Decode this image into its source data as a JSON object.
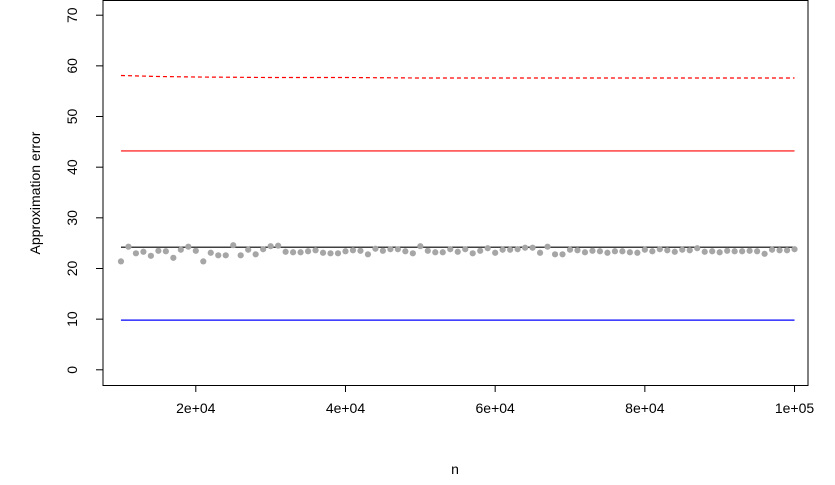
{
  "chart_data": {
    "type": "scatter",
    "title": "",
    "xlabel": "n",
    "ylabel": "Approximation error",
    "xlim": [
      7600,
      101800
    ],
    "ylim": [
      -3,
      73
    ],
    "x_ticks": [
      20000,
      40000,
      60000,
      80000,
      100000
    ],
    "x_tick_labels": [
      "2e+04",
      "4e+04",
      "6e+04",
      "8e+04",
      "1e+05"
    ],
    "y_ticks": [
      0,
      10,
      20,
      30,
      40,
      50,
      60,
      70
    ],
    "y_tick_labels": [
      "0",
      "10",
      "20",
      "30",
      "40",
      "50",
      "60",
      "70"
    ],
    "grid": false,
    "legend": "none",
    "points": {
      "color": "#a6a6a6",
      "x": [
        10000,
        11000,
        12000,
        13000,
        14000,
        15000,
        16000,
        17000,
        18000,
        19000,
        20000,
        21000,
        22000,
        23000,
        24000,
        25000,
        26000,
        27000,
        28000,
        29000,
        30000,
        31000,
        32000,
        33000,
        34000,
        35000,
        36000,
        37000,
        38000,
        39000,
        40000,
        41000,
        42000,
        43000,
        44000,
        45000,
        46000,
        47000,
        48000,
        49000,
        50000,
        51000,
        52000,
        53000,
        54000,
        55000,
        56000,
        57000,
        58000,
        59000,
        60000,
        61000,
        62000,
        63000,
        64000,
        65000,
        66000,
        67000,
        68000,
        69000,
        70000,
        71000,
        72000,
        73000,
        74000,
        75000,
        76000,
        77000,
        78000,
        79000,
        80000,
        81000,
        82000,
        83000,
        84000,
        85000,
        86000,
        87000,
        88000,
        89000,
        90000,
        91000,
        92000,
        93000,
        94000,
        95000,
        96000,
        97000,
        98000,
        99000,
        100000
      ],
      "y": [
        21.4,
        24.3,
        23.0,
        23.3,
        22.5,
        23.5,
        23.4,
        22.1,
        23.7,
        24.3,
        23.5,
        21.4,
        23.1,
        22.6,
        22.6,
        24.6,
        22.6,
        23.7,
        22.8,
        23.8,
        24.4,
        24.5,
        23.3,
        23.2,
        23.2,
        23.4,
        23.6,
        23.1,
        23.0,
        23.0,
        23.4,
        23.6,
        23.5,
        22.8,
        23.9,
        23.5,
        23.8,
        23.8,
        23.4,
        23.0,
        24.4,
        23.5,
        23.2,
        23.2,
        23.8,
        23.3,
        23.8,
        23.0,
        23.5,
        24.0,
        23.1,
        23.7,
        23.7,
        23.8,
        24.1,
        24.1,
        23.1,
        24.3,
        22.8,
        22.8,
        23.7,
        23.6,
        23.2,
        23.5,
        23.4,
        23.1,
        23.4,
        23.4,
        23.2,
        23.1,
        23.7,
        23.4,
        23.8,
        23.6,
        23.3,
        23.7,
        23.6,
        24.0,
        23.3,
        23.4,
        23.2,
        23.5,
        23.4,
        23.4,
        23.5,
        23.4,
        22.9,
        23.7,
        23.6,
        23.6,
        23.8
      ]
    },
    "lines": [
      {
        "color": "#ff0000",
        "style": "dashed",
        "x": [
          10000,
          15000,
          20000,
          30000,
          40000,
          50000,
          60000,
          70000,
          80000,
          90000,
          100000
        ],
        "y": [
          58.1,
          57.9,
          57.8,
          57.7,
          57.7,
          57.6,
          57.6,
          57.6,
          57.6,
          57.6,
          57.6
        ]
      },
      {
        "color": "#ff0000",
        "style": "solid",
        "x": [
          10000,
          100000
        ],
        "y": [
          43.2,
          43.2
        ]
      },
      {
        "color": "#000000",
        "style": "solid",
        "x": [
          10000,
          100000
        ],
        "y": [
          24.2,
          24.2
        ]
      },
      {
        "color": "#0000ff",
        "style": "solid",
        "x": [
          10000,
          100000
        ],
        "y": [
          9.8,
          9.8
        ]
      }
    ]
  }
}
